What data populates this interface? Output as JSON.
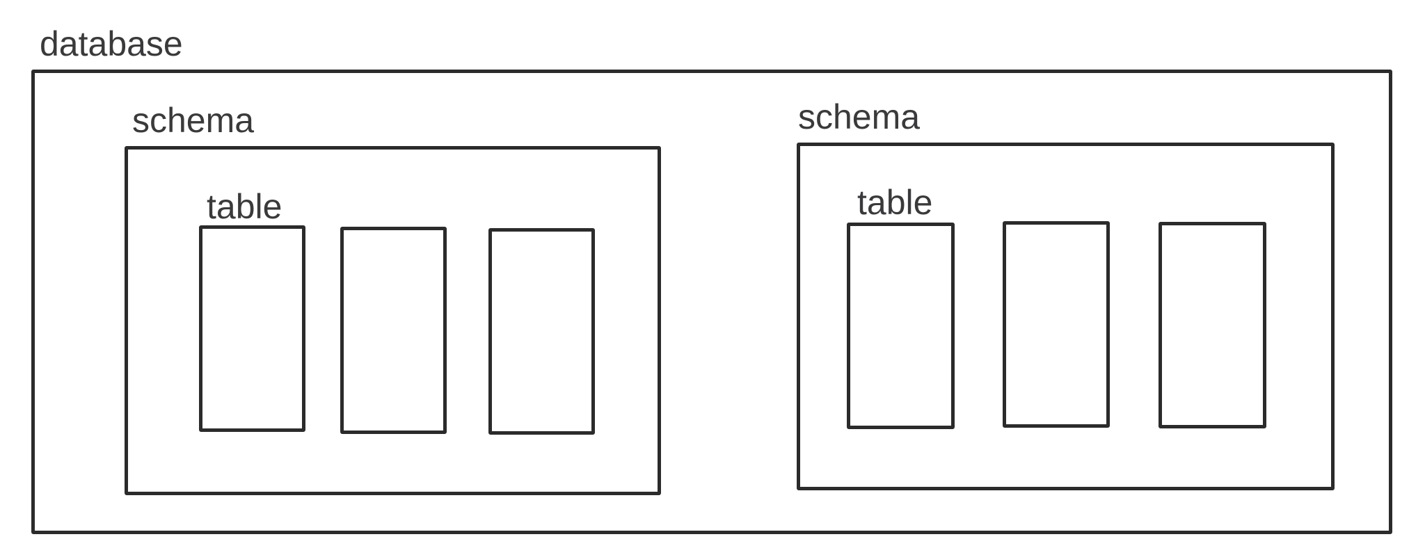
{
  "diagram": {
    "database": {
      "label": "database",
      "schemas": [
        {
          "label": "schema",
          "tables": [
            {
              "label": "table"
            },
            {
              "label": ""
            },
            {
              "label": ""
            }
          ]
        },
        {
          "label": "schema",
          "tables": [
            {
              "label": "table"
            },
            {
              "label": ""
            },
            {
              "label": ""
            }
          ]
        }
      ]
    },
    "colors": {
      "stroke": "#2b2b2b",
      "text": "#3a3a3c",
      "background": "#ffffff"
    }
  }
}
